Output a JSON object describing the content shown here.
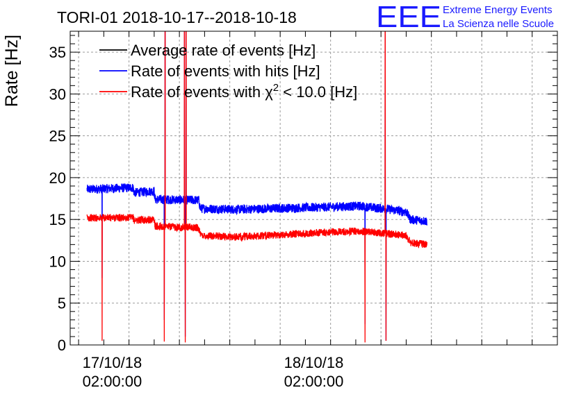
{
  "header": {
    "title": "TORI-01 2018-10-17--2018-10-18",
    "logo_letters": "EEE",
    "logo_line1": "Extreme Energy Events",
    "logo_line2": "La Scienza nelle Scuole"
  },
  "chart_data": {
    "type": "line",
    "ylabel": "Rate [Hz]",
    "xlabel": "",
    "x_unit": "hours since 2018-10-17 00:00:00",
    "xlim": [
      -3,
      55
    ],
    "ylim": [
      0,
      37.5
    ],
    "yticks": [
      0,
      5,
      10,
      15,
      20,
      25,
      30,
      35
    ],
    "xticks": [
      {
        "x": 2,
        "date": "17/10/18",
        "time": "02:00:00"
      },
      {
        "x": 26,
        "date": "18/10/18",
        "time": "02:00:00"
      }
    ],
    "grid": true,
    "legend_position": "top-left",
    "legend": [
      {
        "key": "avg",
        "text": "Average rate of events [Hz]",
        "color": "#000000"
      },
      {
        "key": "hits",
        "text": "Rate of events with hits [Hz]",
        "color": "#0000ff"
      },
      {
        "key": "chi2",
        "prefix": "Rate of events with ",
        "chi": "χ",
        "sup": "2",
        "suffix": " < 10.0 [Hz]",
        "color": "#ff0000"
      }
    ],
    "series": [
      {
        "key": "hits",
        "name": "Rate of events with hits [Hz]",
        "color": "#0000ff",
        "noise": 0.55,
        "x_start": -1,
        "x_end": 39.5,
        "base": [
          [
            -1,
            18.6
          ],
          [
            4.5,
            18.8
          ],
          [
            4.6,
            18.2
          ],
          [
            7,
            18.4
          ],
          [
            7.1,
            17.4
          ],
          [
            12.3,
            17.3
          ],
          [
            12.5,
            16.3
          ],
          [
            17,
            16.2
          ],
          [
            28,
            16.5
          ],
          [
            31.5,
            16.6
          ],
          [
            35,
            16.2
          ],
          [
            37,
            15.9
          ],
          [
            37.5,
            15.0
          ],
          [
            39.5,
            14.8
          ]
        ],
        "spikes": [
          [
            0.8,
            8.0
          ],
          [
            8.2,
            3.0
          ],
          [
            10.7,
            1.0
          ],
          [
            32.1,
            2.5
          ],
          [
            34.6,
            0.5
          ]
        ],
        "peaks": [
          [
            8.3,
            50
          ],
          [
            10.6,
            50
          ],
          [
            10.8,
            50
          ],
          [
            34.5,
            50
          ]
        ]
      },
      {
        "key": "chi2",
        "name": "Rate of events with χ2 < 10.0 [Hz]",
        "color": "#ff0000",
        "noise": 0.45,
        "x_start": -1,
        "x_end": 39.5,
        "base": [
          [
            -1,
            15.2
          ],
          [
            4.5,
            15.2
          ],
          [
            4.6,
            14.9
          ],
          [
            7,
            15.0
          ],
          [
            7.1,
            14.2
          ],
          [
            12.3,
            14.0
          ],
          [
            12.5,
            13.1
          ],
          [
            17,
            12.9
          ],
          [
            28,
            13.5
          ],
          [
            31.5,
            13.6
          ],
          [
            35,
            13.3
          ],
          [
            37,
            13.1
          ],
          [
            37.5,
            12.2
          ],
          [
            39.5,
            12.0
          ]
        ],
        "spikes": [
          [
            0.8,
            0.5
          ],
          [
            8.2,
            0.4
          ],
          [
            10.7,
            0.3
          ],
          [
            32.1,
            0.3
          ],
          [
            34.6,
            0.5
          ]
        ],
        "peaks": [
          [
            8.3,
            50
          ],
          [
            10.6,
            50
          ],
          [
            10.8,
            50
          ],
          [
            34.5,
            50
          ]
        ]
      }
    ]
  }
}
